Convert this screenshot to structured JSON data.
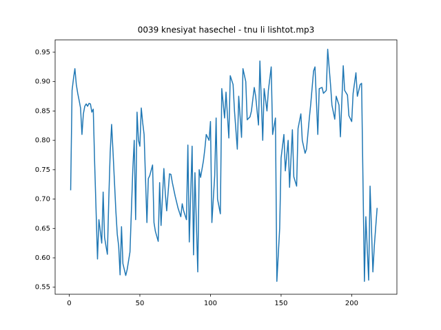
{
  "chart_data": {
    "type": "line",
    "title": "0039 knesiyat hasechel - tnu li lishtot.mp3",
    "x": [
      1,
      2,
      3,
      4,
      5,
      6,
      7,
      8,
      9,
      10,
      11,
      12,
      13,
      14,
      15,
      16,
      17,
      18,
      19,
      20,
      21,
      22,
      23,
      24,
      25,
      26,
      27,
      28,
      29,
      30,
      31,
      32,
      33,
      34,
      35,
      36,
      37,
      38,
      39,
      40,
      41,
      42,
      43,
      44,
      45,
      46,
      47,
      48,
      49,
      50,
      51,
      52,
      53,
      55,
      56,
      57,
      59,
      60,
      61,
      63,
      64,
      65,
      67,
      68,
      69,
      71,
      72,
      73,
      75,
      76,
      77,
      79,
      80,
      81,
      83,
      84,
      85,
      87,
      88,
      89,
      91,
      92,
      93,
      95,
      96,
      97,
      99,
      100,
      101,
      103,
      104,
      105,
      107,
      108,
      110,
      111,
      113,
      114,
      116,
      117,
      119,
      120,
      122,
      123,
      125,
      126,
      128,
      129,
      131,
      132,
      134,
      135,
      137,
      138,
      140,
      141,
      143,
      144,
      146,
      147,
      149,
      150,
      152,
      153,
      155,
      156,
      158,
      159,
      161,
      162,
      164,
      165,
      167,
      168,
      170,
      171,
      173,
      174,
      176,
      177,
      179,
      180,
      182,
      183,
      185,
      186,
      188,
      189,
      191,
      192,
      194,
      195,
      197,
      198,
      200,
      201,
      203,
      204,
      206,
      207,
      209,
      210,
      212,
      213,
      215,
      216,
      218
    ],
    "series": [
      {
        "color": "#1f77b4",
        "values": [
          0.715,
          0.885,
          0.905,
          0.922,
          0.895,
          0.88,
          0.868,
          0.855,
          0.81,
          0.845,
          0.858,
          0.862,
          0.858,
          0.863,
          0.862,
          0.848,
          0.853,
          0.76,
          0.68,
          0.598,
          0.665,
          0.645,
          0.625,
          0.712,
          0.635,
          0.62,
          0.606,
          0.7,
          0.78,
          0.827,
          0.78,
          0.73,
          0.68,
          0.64,
          0.62,
          0.571,
          0.653,
          0.59,
          0.58,
          0.57,
          0.58,
          0.595,
          0.61,
          0.68,
          0.75,
          0.8,
          0.665,
          0.848,
          0.8,
          0.79,
          0.855,
          0.83,
          0.81,
          0.66,
          0.735,
          0.74,
          0.758,
          0.66,
          0.645,
          0.628,
          0.728,
          0.655,
          0.752,
          0.71,
          0.68,
          0.743,
          0.742,
          0.728,
          0.705,
          0.695,
          0.685,
          0.67,
          0.692,
          0.68,
          0.665,
          0.792,
          0.627,
          0.79,
          0.605,
          0.745,
          0.576,
          0.75,
          0.737,
          0.765,
          0.785,
          0.81,
          0.8,
          0.832,
          0.66,
          0.74,
          0.838,
          0.7,
          0.675,
          0.888,
          0.838,
          0.882,
          0.804,
          0.91,
          0.895,
          0.85,
          0.785,
          0.875,
          0.805,
          0.922,
          0.9,
          0.835,
          0.84,
          0.85,
          0.89,
          0.875,
          0.826,
          0.935,
          0.8,
          0.888,
          0.85,
          0.885,
          0.925,
          0.81,
          0.838,
          0.56,
          0.65,
          0.77,
          0.81,
          0.748,
          0.8,
          0.72,
          0.818,
          0.738,
          0.722,
          0.82,
          0.845,
          0.8,
          0.778,
          0.785,
          0.838,
          0.862,
          0.918,
          0.925,
          0.81,
          0.888,
          0.89,
          0.88,
          0.885,
          0.955,
          0.895,
          0.86,
          0.836,
          0.875,
          0.86,
          0.806,
          0.927,
          0.885,
          0.877,
          0.842,
          0.832,
          0.88,
          0.915,
          0.875,
          0.895,
          0.897,
          0.56,
          0.67,
          0.562,
          0.722,
          0.576,
          0.62,
          0.685
        ]
      }
    ],
    "xlim": [
      -10,
      232
    ],
    "xticks": [
      0,
      50,
      100,
      150,
      200
    ],
    "ylim": [
      0.538,
      0.971
    ],
    "yticks": [
      0.55,
      {
        "value": 0.6,
        "label": "0.60"
      },
      0.65,
      {
        "value": 0.7,
        "label": "0.70"
      },
      0.75,
      {
        "value": 0.8,
        "label": "0.80"
      },
      0.85,
      {
        "value": 0.9,
        "label": "0.90"
      },
      0.95
    ]
  }
}
